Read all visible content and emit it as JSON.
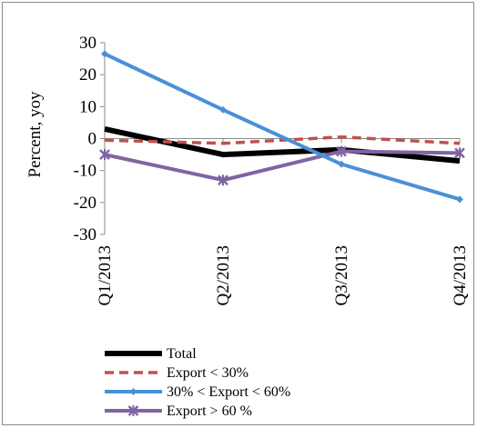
{
  "chart_data": {
    "type": "line",
    "ylabel": "Percent, yoy",
    "xlabel": "",
    "categories": [
      "Q1/2013",
      "Q2/2013",
      "Q3/2013",
      "Q4/2013"
    ],
    "ylim": [
      -30,
      30
    ],
    "yticks": [
      "30",
      "20",
      "10",
      "0",
      "-10",
      "-20",
      "-30"
    ],
    "grid": false,
    "legend_position": "bottom-left",
    "series": [
      {
        "name": "Total",
        "values": [
          3.0,
          -5.0,
          -3.5,
          -7.0
        ],
        "color": "#000000",
        "style": "solid-thick",
        "marker": "none"
      },
      {
        "name": "Export < 30%",
        "values": [
          -0.5,
          -1.5,
          0.5,
          -1.5
        ],
        "color": "#c0504d",
        "style": "dashed",
        "marker": "none"
      },
      {
        "name": "30% < Export < 60%",
        "values": [
          26.5,
          9.0,
          -8.0,
          -19.0
        ],
        "color": "#4a90d9",
        "style": "solid",
        "marker": "diamond"
      },
      {
        "name": "Export > 60 %",
        "values": [
          -5.0,
          -13.0,
          -4.0,
          -4.5
        ],
        "color": "#8064a2",
        "style": "solid",
        "marker": "star"
      }
    ]
  }
}
